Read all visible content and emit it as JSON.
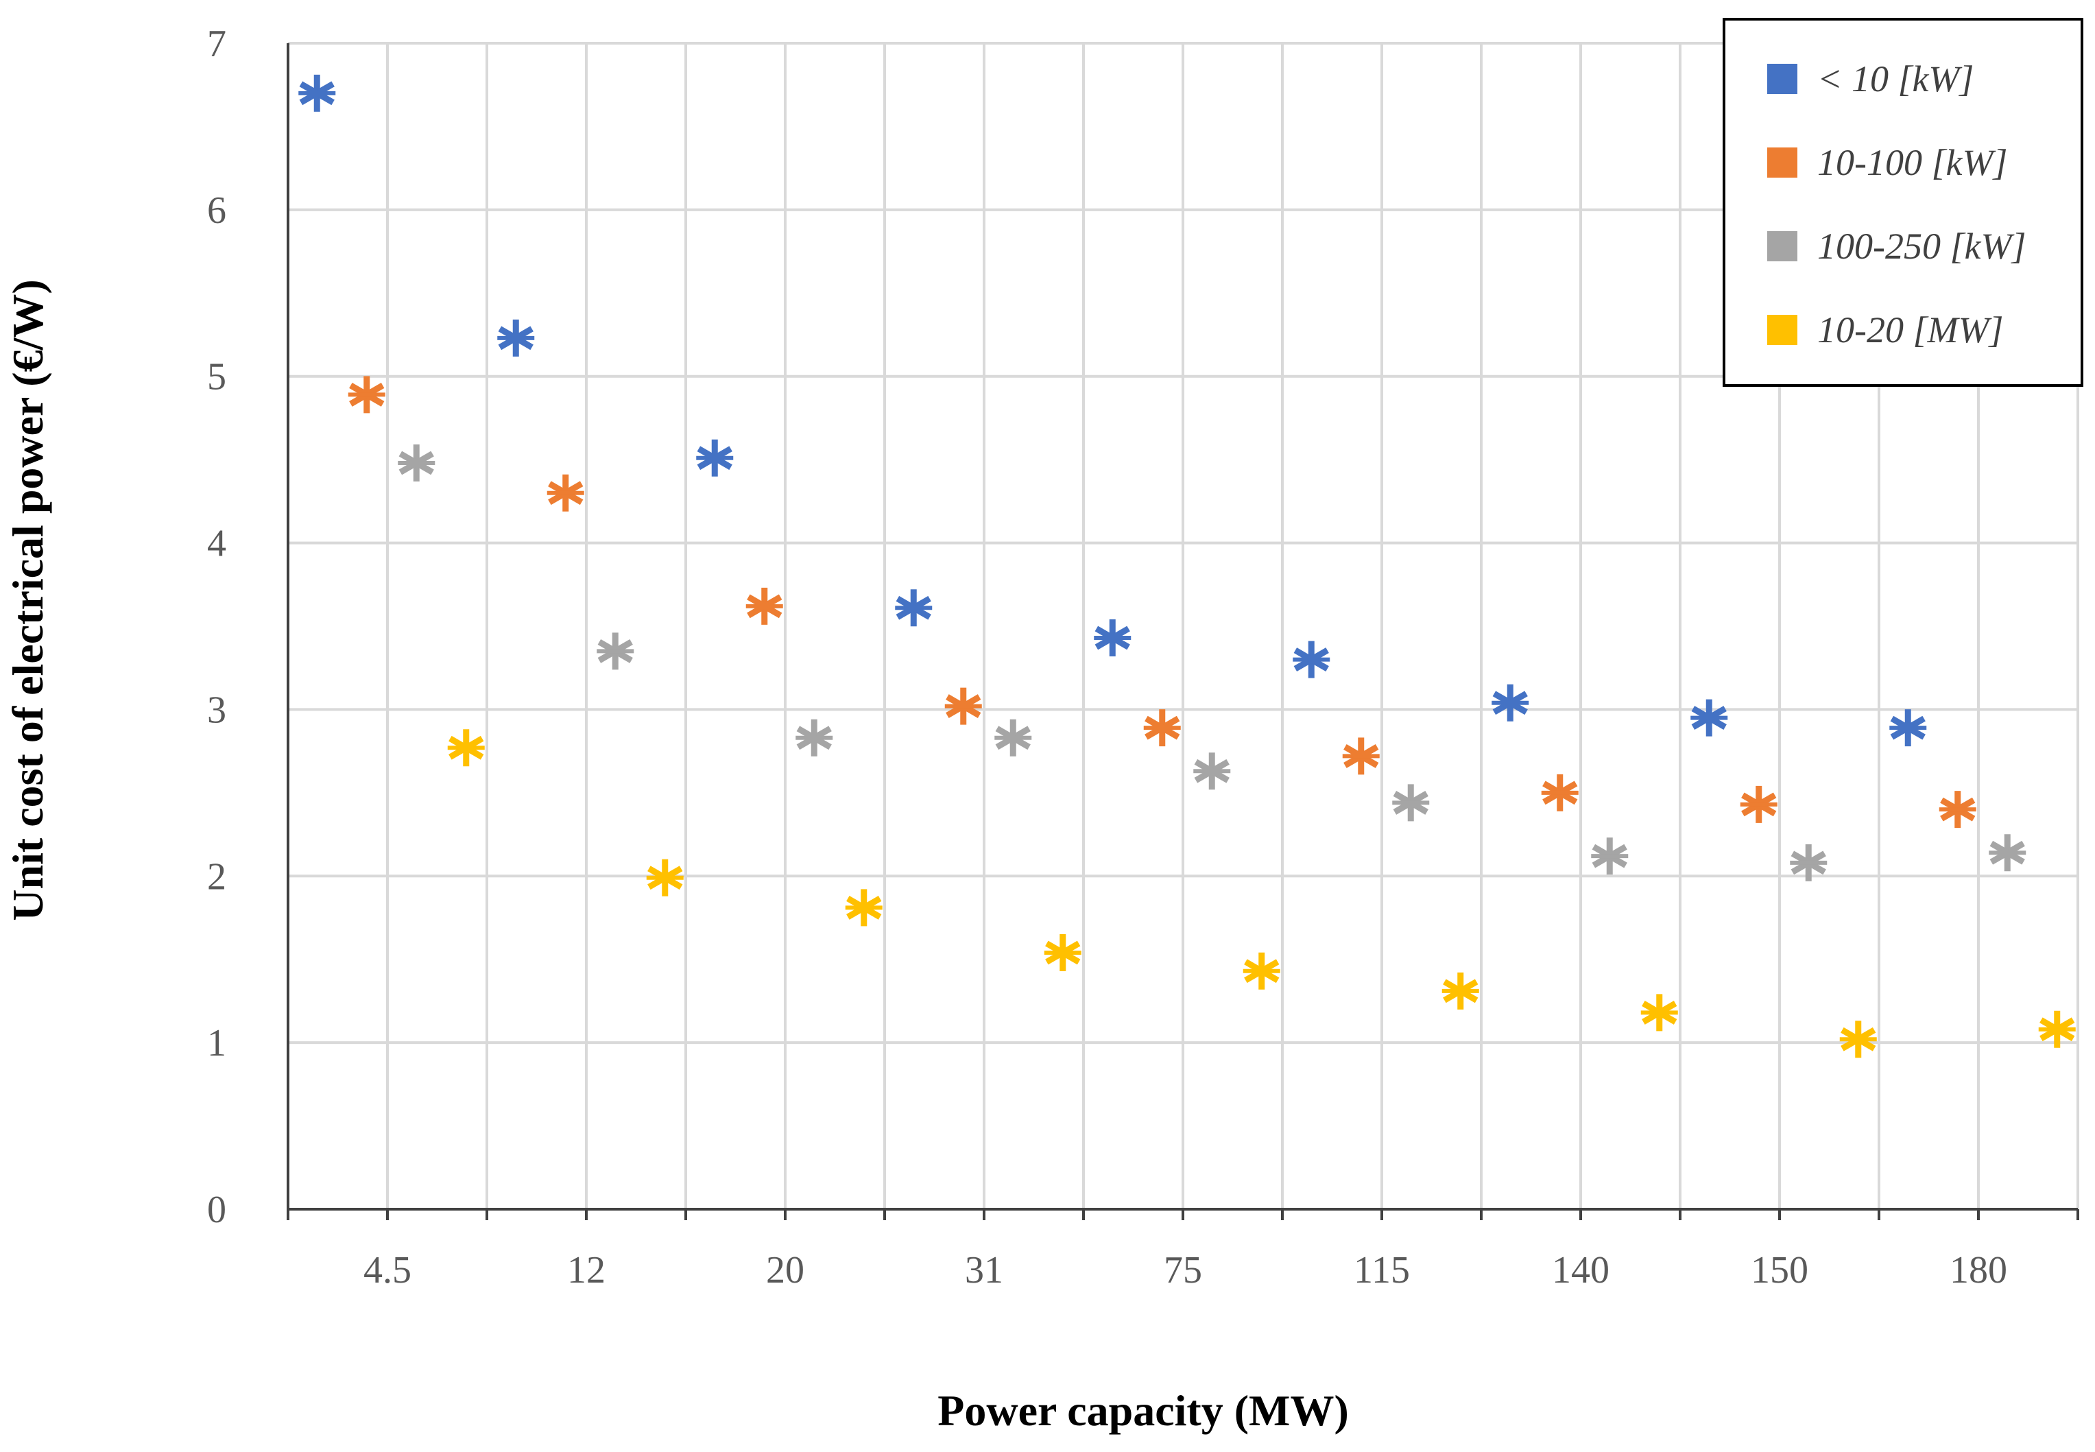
{
  "chart_data": {
    "type": "scatter",
    "title": "",
    "xlabel": "Power capacity (MW)",
    "ylabel": "Unit cost of electrical power (€/W)",
    "categories": [
      "4.5",
      "12",
      "20",
      "31",
      "75",
      "115",
      "140",
      "150",
      "180"
    ],
    "ylim": [
      0,
      7
    ],
    "yticks": [
      "0",
      "1",
      "2",
      "3",
      "4",
      "5",
      "6",
      "7"
    ],
    "grid": true,
    "legend_position": "top-right",
    "marker": "asterisk",
    "series": [
      {
        "name": "< 10 [kW]",
        "color": "#4472C4",
        "values": [
          6.7,
          5.23,
          4.51,
          3.61,
          3.43,
          3.3,
          3.04,
          2.95,
          2.89
        ]
      },
      {
        "name": "10-100 [kW]",
        "color": "#ED7D31",
        "values": [
          4.89,
          4.3,
          3.62,
          3.02,
          2.89,
          2.72,
          2.5,
          2.43,
          2.4
        ]
      },
      {
        "name": "100-250 [kW]",
        "color": "#A5A5A5",
        "values": [
          4.48,
          3.35,
          2.83,
          2.83,
          2.63,
          2.44,
          2.12,
          2.08,
          2.14
        ]
      },
      {
        "name": "10-20 [MW]",
        "color": "#FFC000",
        "values": [
          2.77,
          1.99,
          1.81,
          1.54,
          1.43,
          1.31,
          1.18,
          1.02,
          1.08
        ]
      }
    ]
  }
}
